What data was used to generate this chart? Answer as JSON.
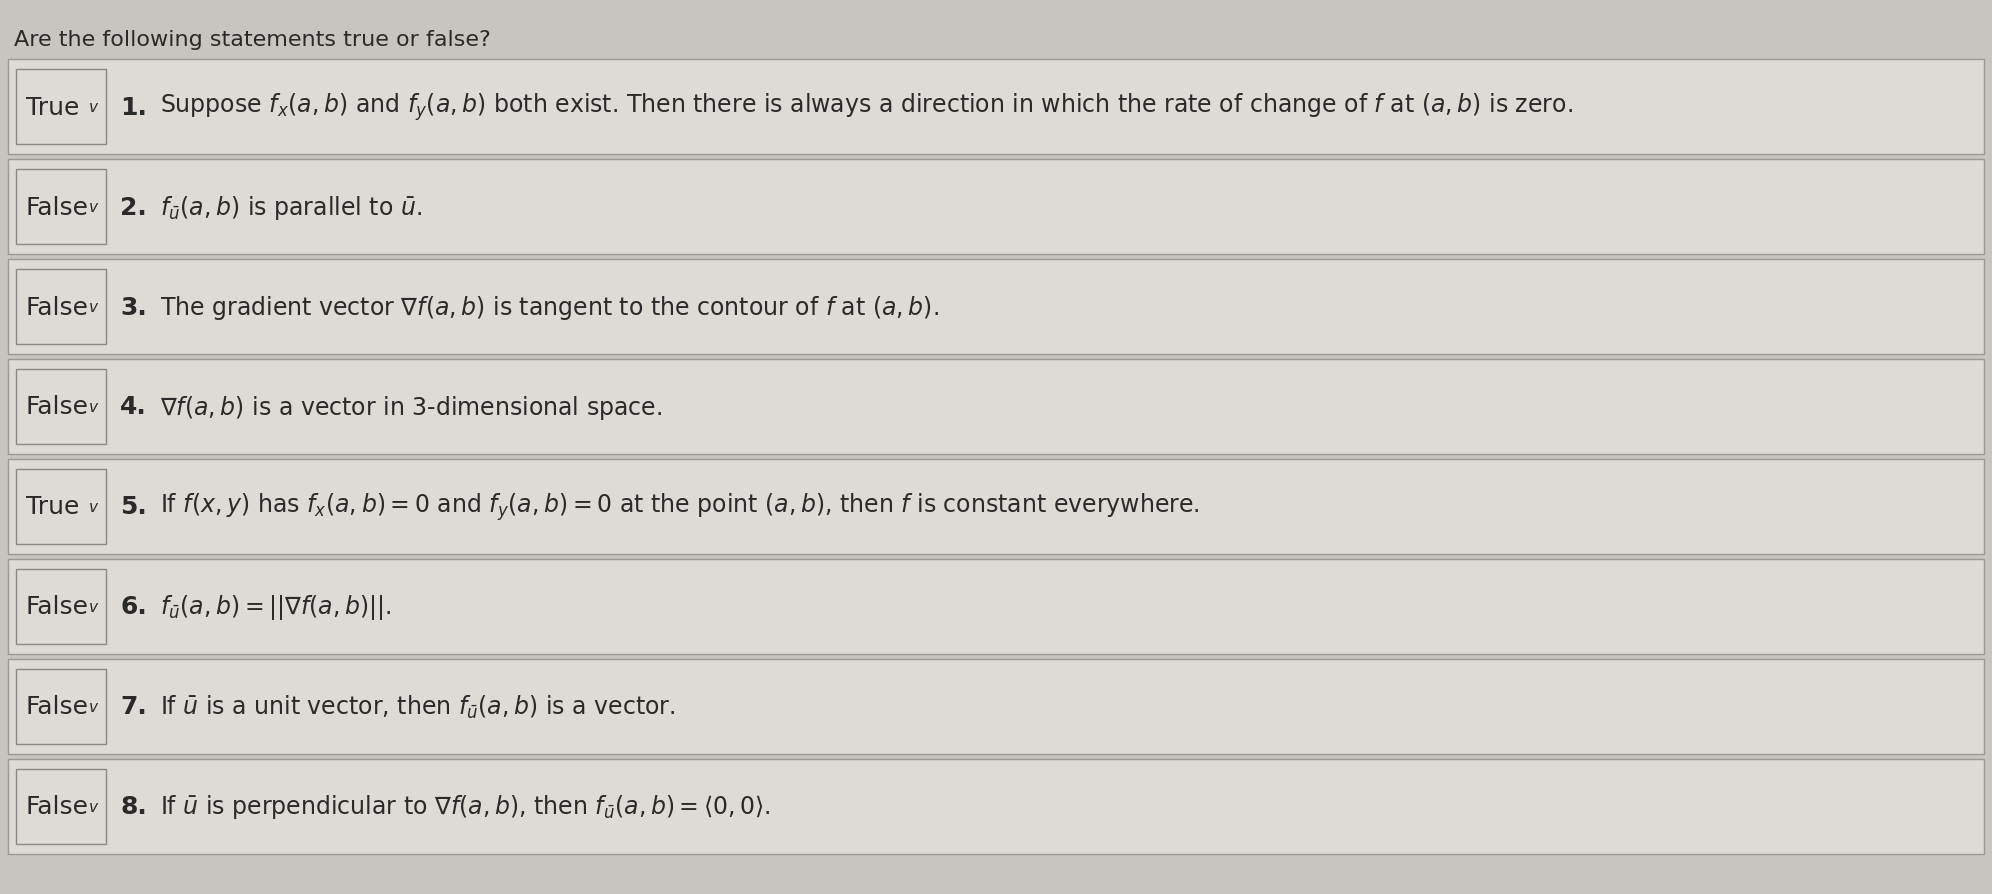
{
  "title": "Are the following statements true or false?",
  "bg_color": "#c8c4bf",
  "box_color": "#dedad5",
  "box_edge_color": "#999999",
  "text_color": "#2a2a2a",
  "dropdown_bg": "#dedad5",
  "dropdown_edge": "#888888",
  "items": [
    {
      "answer": "True",
      "number": "1.",
      "text": "Suppose $f_x(a,b)$ and $f_y(a,b)$ both exist. Then there is always a direction in which the rate of change of $f$ at $(a, b)$ is zero."
    },
    {
      "answer": "False",
      "number": "2.",
      "text": "$f_{\\bar{u}}(a, b)$ is parallel to $\\bar{u}$."
    },
    {
      "answer": "False",
      "number": "3.",
      "text": "The gradient vector $\\nabla f(a, b)$ is tangent to the contour of $f$ at $(a, b)$."
    },
    {
      "answer": "False",
      "number": "4.",
      "text": "$\\nabla f(a,b)$ is a vector in 3-dimensional space."
    },
    {
      "answer": "True",
      "number": "5.",
      "text": "If $f(x, y)$ has $f_x(a,b) = 0$ and $f_y(a, b) = 0$ at the point $(a, b)$, then $f$ is constant everywhere."
    },
    {
      "answer": "False",
      "number": "6.",
      "text": "$f_{\\bar{u}}(a, b) = ||\\nabla f(a, b)||$."
    },
    {
      "answer": "False",
      "number": "7.",
      "text": "If $\\bar{u}$ is a unit vector, then $f_{\\bar{u}}(a, b)$ is a vector."
    },
    {
      "answer": "False",
      "number": "8.",
      "text": "If $\\bar{u}$ is perpendicular to $\\nabla f(a, b)$, then $f_{\\bar{u}}(a, b) = \\langle 0, 0\\rangle$."
    }
  ],
  "title_fontsize": 16,
  "answer_fontsize": 18,
  "number_fontsize": 18,
  "text_fontsize": 17,
  "figsize": [
    19.92,
    8.95
  ],
  "dpi": 100
}
